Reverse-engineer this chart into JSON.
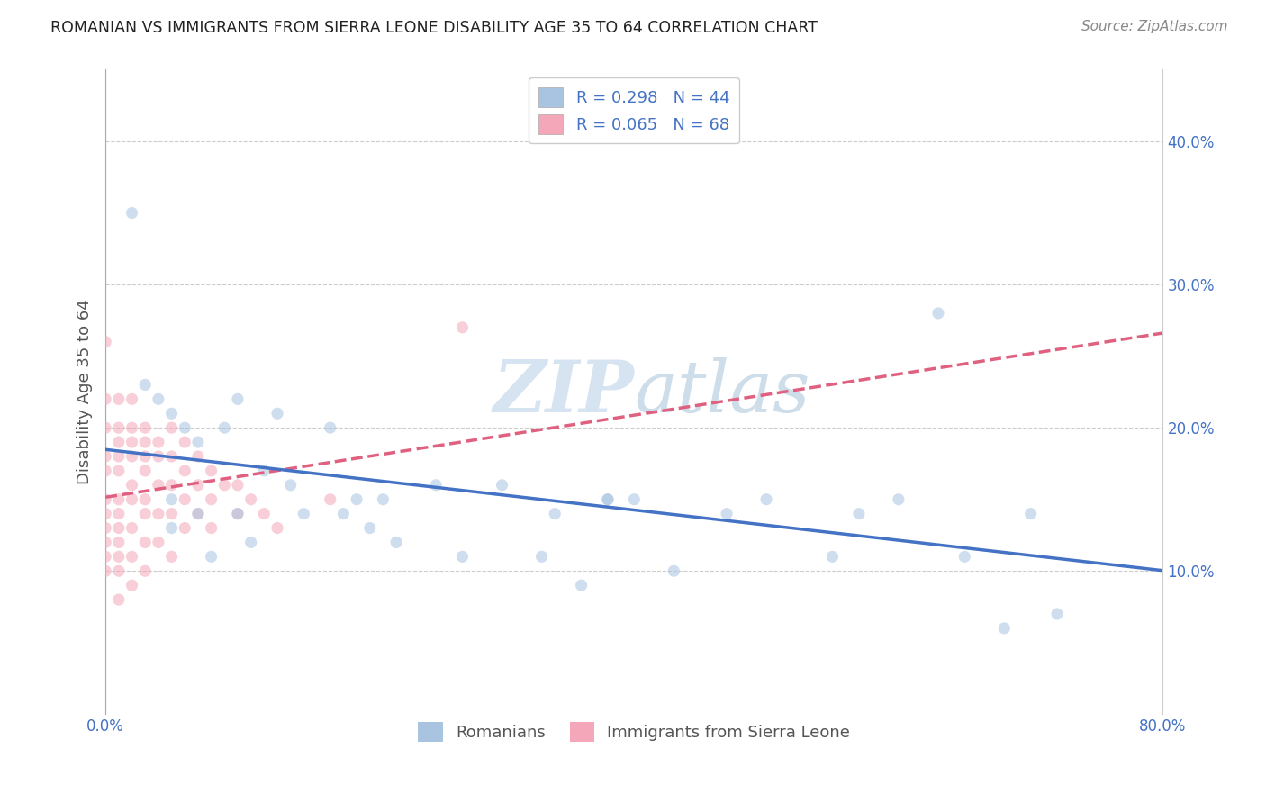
{
  "title": "ROMANIAN VS IMMIGRANTS FROM SIERRA LEONE DISABILITY AGE 35 TO 64 CORRELATION CHART",
  "source": "Source: ZipAtlas.com",
  "ylabel": "Disability Age 35 to 64",
  "watermark": "ZIPAtlas",
  "xlim": [
    0.0,
    0.8
  ],
  "ylim": [
    0.0,
    0.45
  ],
  "background_color": "#ffffff",
  "grid_color": "#cccccc",
  "title_color": "#222222",
  "axis_label_color": "#555555",
  "tick_color": "#4472c4",
  "watermark_color": "#c8d8e8",
  "legend_R_color": "#4472c4",
  "marker_size": 90,
  "marker_alpha": 0.55,
  "series": [
    {
      "name": "Romanians",
      "R": 0.298,
      "N": 44,
      "color": "#a8c4e0",
      "line_color": "#4472c4",
      "line_style": "-",
      "x": [
        0.02,
        0.03,
        0.04,
        0.05,
        0.05,
        0.06,
        0.07,
        0.07,
        0.08,
        0.09,
        0.1,
        0.1,
        0.11,
        0.12,
        0.13,
        0.14,
        0.15,
        0.17,
        0.18,
        0.19,
        0.2,
        0.21,
        0.22,
        0.25,
        0.27,
        0.3,
        0.33,
        0.34,
        0.36,
        0.38,
        0.4,
        0.43,
        0.47,
        0.5,
        0.55,
        0.57,
        0.6,
        0.63,
        0.65,
        0.68,
        0.7,
        0.72,
        0.05,
        0.38
      ],
      "y": [
        0.35,
        0.23,
        0.22,
        0.21,
        0.13,
        0.2,
        0.14,
        0.19,
        0.11,
        0.2,
        0.22,
        0.14,
        0.12,
        0.17,
        0.21,
        0.16,
        0.14,
        0.2,
        0.14,
        0.15,
        0.13,
        0.15,
        0.12,
        0.16,
        0.11,
        0.16,
        0.11,
        0.14,
        0.09,
        0.15,
        0.15,
        0.1,
        0.14,
        0.15,
        0.11,
        0.14,
        0.15,
        0.28,
        0.11,
        0.06,
        0.14,
        0.07,
        0.15,
        0.15
      ]
    },
    {
      "name": "Immigrants from Sierra Leone",
      "R": 0.065,
      "N": 68,
      "color": "#f4a7b9",
      "line_color": "#e06080",
      "line_style": "--",
      "x": [
        0.0,
        0.0,
        0.0,
        0.0,
        0.0,
        0.0,
        0.0,
        0.0,
        0.0,
        0.0,
        0.0,
        0.01,
        0.01,
        0.01,
        0.01,
        0.01,
        0.01,
        0.01,
        0.01,
        0.01,
        0.01,
        0.01,
        0.01,
        0.02,
        0.02,
        0.02,
        0.02,
        0.02,
        0.02,
        0.02,
        0.02,
        0.02,
        0.03,
        0.03,
        0.03,
        0.03,
        0.03,
        0.03,
        0.03,
        0.03,
        0.04,
        0.04,
        0.04,
        0.04,
        0.04,
        0.05,
        0.05,
        0.05,
        0.05,
        0.05,
        0.06,
        0.06,
        0.06,
        0.06,
        0.07,
        0.07,
        0.07,
        0.08,
        0.08,
        0.08,
        0.09,
        0.1,
        0.1,
        0.11,
        0.12,
        0.13,
        0.17,
        0.27
      ],
      "y": [
        0.26,
        0.22,
        0.2,
        0.18,
        0.17,
        0.15,
        0.14,
        0.13,
        0.12,
        0.11,
        0.1,
        0.22,
        0.2,
        0.19,
        0.18,
        0.17,
        0.15,
        0.14,
        0.13,
        0.12,
        0.11,
        0.1,
        0.08,
        0.22,
        0.2,
        0.19,
        0.18,
        0.16,
        0.15,
        0.13,
        0.11,
        0.09,
        0.2,
        0.19,
        0.18,
        0.17,
        0.15,
        0.14,
        0.12,
        0.1,
        0.19,
        0.18,
        0.16,
        0.14,
        0.12,
        0.2,
        0.18,
        0.16,
        0.14,
        0.11,
        0.19,
        0.17,
        0.15,
        0.13,
        0.18,
        0.16,
        0.14,
        0.17,
        0.15,
        0.13,
        0.16,
        0.16,
        0.14,
        0.15,
        0.14,
        0.13,
        0.15,
        0.27
      ]
    }
  ]
}
